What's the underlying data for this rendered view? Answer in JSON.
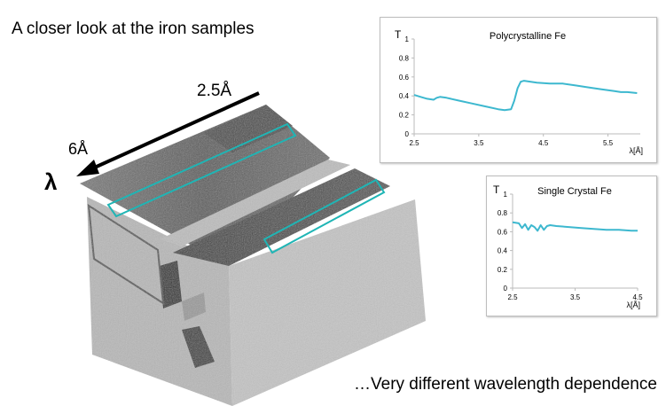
{
  "slide": {
    "title": "A closer look at the iron samples",
    "footer": "…Very different wavelength dependence"
  },
  "figure": {
    "labels": {
      "length_top": "2.5Å",
      "length_side": "6Å",
      "lambda": "λ"
    },
    "highlight_color": "#1fb5b5",
    "arrow_color": "#000000"
  },
  "chart_data": [
    {
      "type": "line",
      "title": "Polycrystalline Fe",
      "ylabel": "T",
      "xlabel": "λ[Å]",
      "xlim": [
        2.5,
        6.0
      ],
      "ylim": [
        0,
        1
      ],
      "xticks": [
        "2.5",
        "3.5",
        "4.5",
        "5.5"
      ],
      "xtick_values": [
        2.5,
        3.5,
        4.5,
        5.5
      ],
      "yticks": [
        "0",
        "0.2",
        "0.4",
        "0.6",
        "0.8",
        "1"
      ],
      "ytick_values": [
        0,
        0.2,
        0.4,
        0.6,
        0.8,
        1.0
      ],
      "grid": false,
      "color": "#3db8cf",
      "series": [
        {
          "x": [
            2.5,
            2.6,
            2.7,
            2.8,
            2.85,
            2.9,
            3.0,
            3.2,
            3.4,
            3.6,
            3.8,
            3.9,
            4.0,
            4.05,
            4.1,
            4.15,
            4.2,
            4.4,
            4.6,
            4.8,
            5.0,
            5.2,
            5.4,
            5.6,
            5.7,
            5.8,
            5.95
          ],
          "y": [
            0.41,
            0.39,
            0.37,
            0.36,
            0.38,
            0.39,
            0.38,
            0.35,
            0.32,
            0.29,
            0.26,
            0.25,
            0.26,
            0.35,
            0.48,
            0.55,
            0.56,
            0.54,
            0.53,
            0.53,
            0.51,
            0.49,
            0.47,
            0.45,
            0.44,
            0.44,
            0.43
          ]
        }
      ]
    },
    {
      "type": "line",
      "title": "Single Crystal Fe",
      "ylabel": "T",
      "xlabel": "λ[Å]",
      "xlim": [
        2.5,
        4.5
      ],
      "ylim": [
        0,
        1
      ],
      "xticks": [
        "2.5",
        "3.5",
        "4.5"
      ],
      "xtick_values": [
        2.5,
        3.5,
        4.5
      ],
      "yticks": [
        "0",
        "0.2",
        "0.4",
        "0.6",
        "0.8",
        "1"
      ],
      "ytick_values": [
        0,
        0.2,
        0.4,
        0.6,
        0.8,
        1.0
      ],
      "grid": false,
      "color": "#3db8cf",
      "series": [
        {
          "x": [
            2.5,
            2.6,
            2.65,
            2.7,
            2.75,
            2.8,
            2.85,
            2.9,
            2.95,
            3.0,
            3.05,
            3.1,
            3.2,
            3.4,
            3.6,
            3.8,
            4.0,
            4.2,
            4.4,
            4.5
          ],
          "y": [
            0.7,
            0.69,
            0.64,
            0.68,
            0.62,
            0.67,
            0.65,
            0.61,
            0.67,
            0.62,
            0.66,
            0.67,
            0.66,
            0.65,
            0.64,
            0.63,
            0.62,
            0.62,
            0.61,
            0.61
          ]
        }
      ]
    }
  ]
}
